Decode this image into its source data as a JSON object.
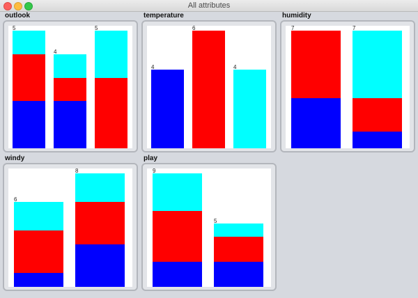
{
  "window": {
    "title": "All attributes"
  },
  "colors": {
    "blue": "#0000ff",
    "red": "#ff0000",
    "cyan": "#00ffff"
  },
  "charts": [
    {
      "name": "outlook",
      "max": 5,
      "bars": [
        {
          "label": "5",
          "segments": [
            [
              "cyan",
              1
            ],
            [
              "red",
              2
            ],
            [
              "blue",
              2
            ]
          ]
        },
        {
          "label": "4",
          "segments": [
            [
              "cyan",
              1
            ],
            [
              "red",
              1
            ],
            [
              "blue",
              2
            ]
          ]
        },
        {
          "label": "5",
          "segments": [
            [
              "cyan",
              2
            ],
            [
              "red",
              3
            ]
          ]
        }
      ]
    },
    {
      "name": "temperature",
      "max": 6,
      "bars": [
        {
          "label": "4",
          "segments": [
            [
              "blue",
              4
            ]
          ]
        },
        {
          "label": "6",
          "segments": [
            [
              "red",
              6
            ]
          ]
        },
        {
          "label": "4",
          "segments": [
            [
              "cyan",
              4
            ]
          ]
        }
      ]
    },
    {
      "name": "humidity",
      "max": 7,
      "bars": [
        {
          "label": "7",
          "segments": [
            [
              "red",
              4
            ],
            [
              "blue",
              3
            ]
          ]
        },
        {
          "label": "7",
          "segments": [
            [
              "cyan",
              4
            ],
            [
              "red",
              2
            ],
            [
              "blue",
              1
            ]
          ]
        }
      ]
    },
    {
      "name": "windy",
      "max": 8,
      "bars": [
        {
          "label": "6",
          "segments": [
            [
              "cyan",
              2
            ],
            [
              "red",
              3
            ],
            [
              "blue",
              1
            ]
          ]
        },
        {
          "label": "8",
          "segments": [
            [
              "cyan",
              2
            ],
            [
              "red",
              3
            ],
            [
              "blue",
              3
            ]
          ]
        }
      ]
    },
    {
      "name": "play",
      "max": 9,
      "bars": [
        {
          "label": "9",
          "segments": [
            [
              "cyan",
              3
            ],
            [
              "red",
              4
            ],
            [
              "blue",
              2
            ]
          ]
        },
        {
          "label": "5",
          "segments": [
            [
              "cyan",
              1
            ],
            [
              "red",
              2
            ],
            [
              "blue",
              2
            ]
          ]
        }
      ]
    }
  ]
}
